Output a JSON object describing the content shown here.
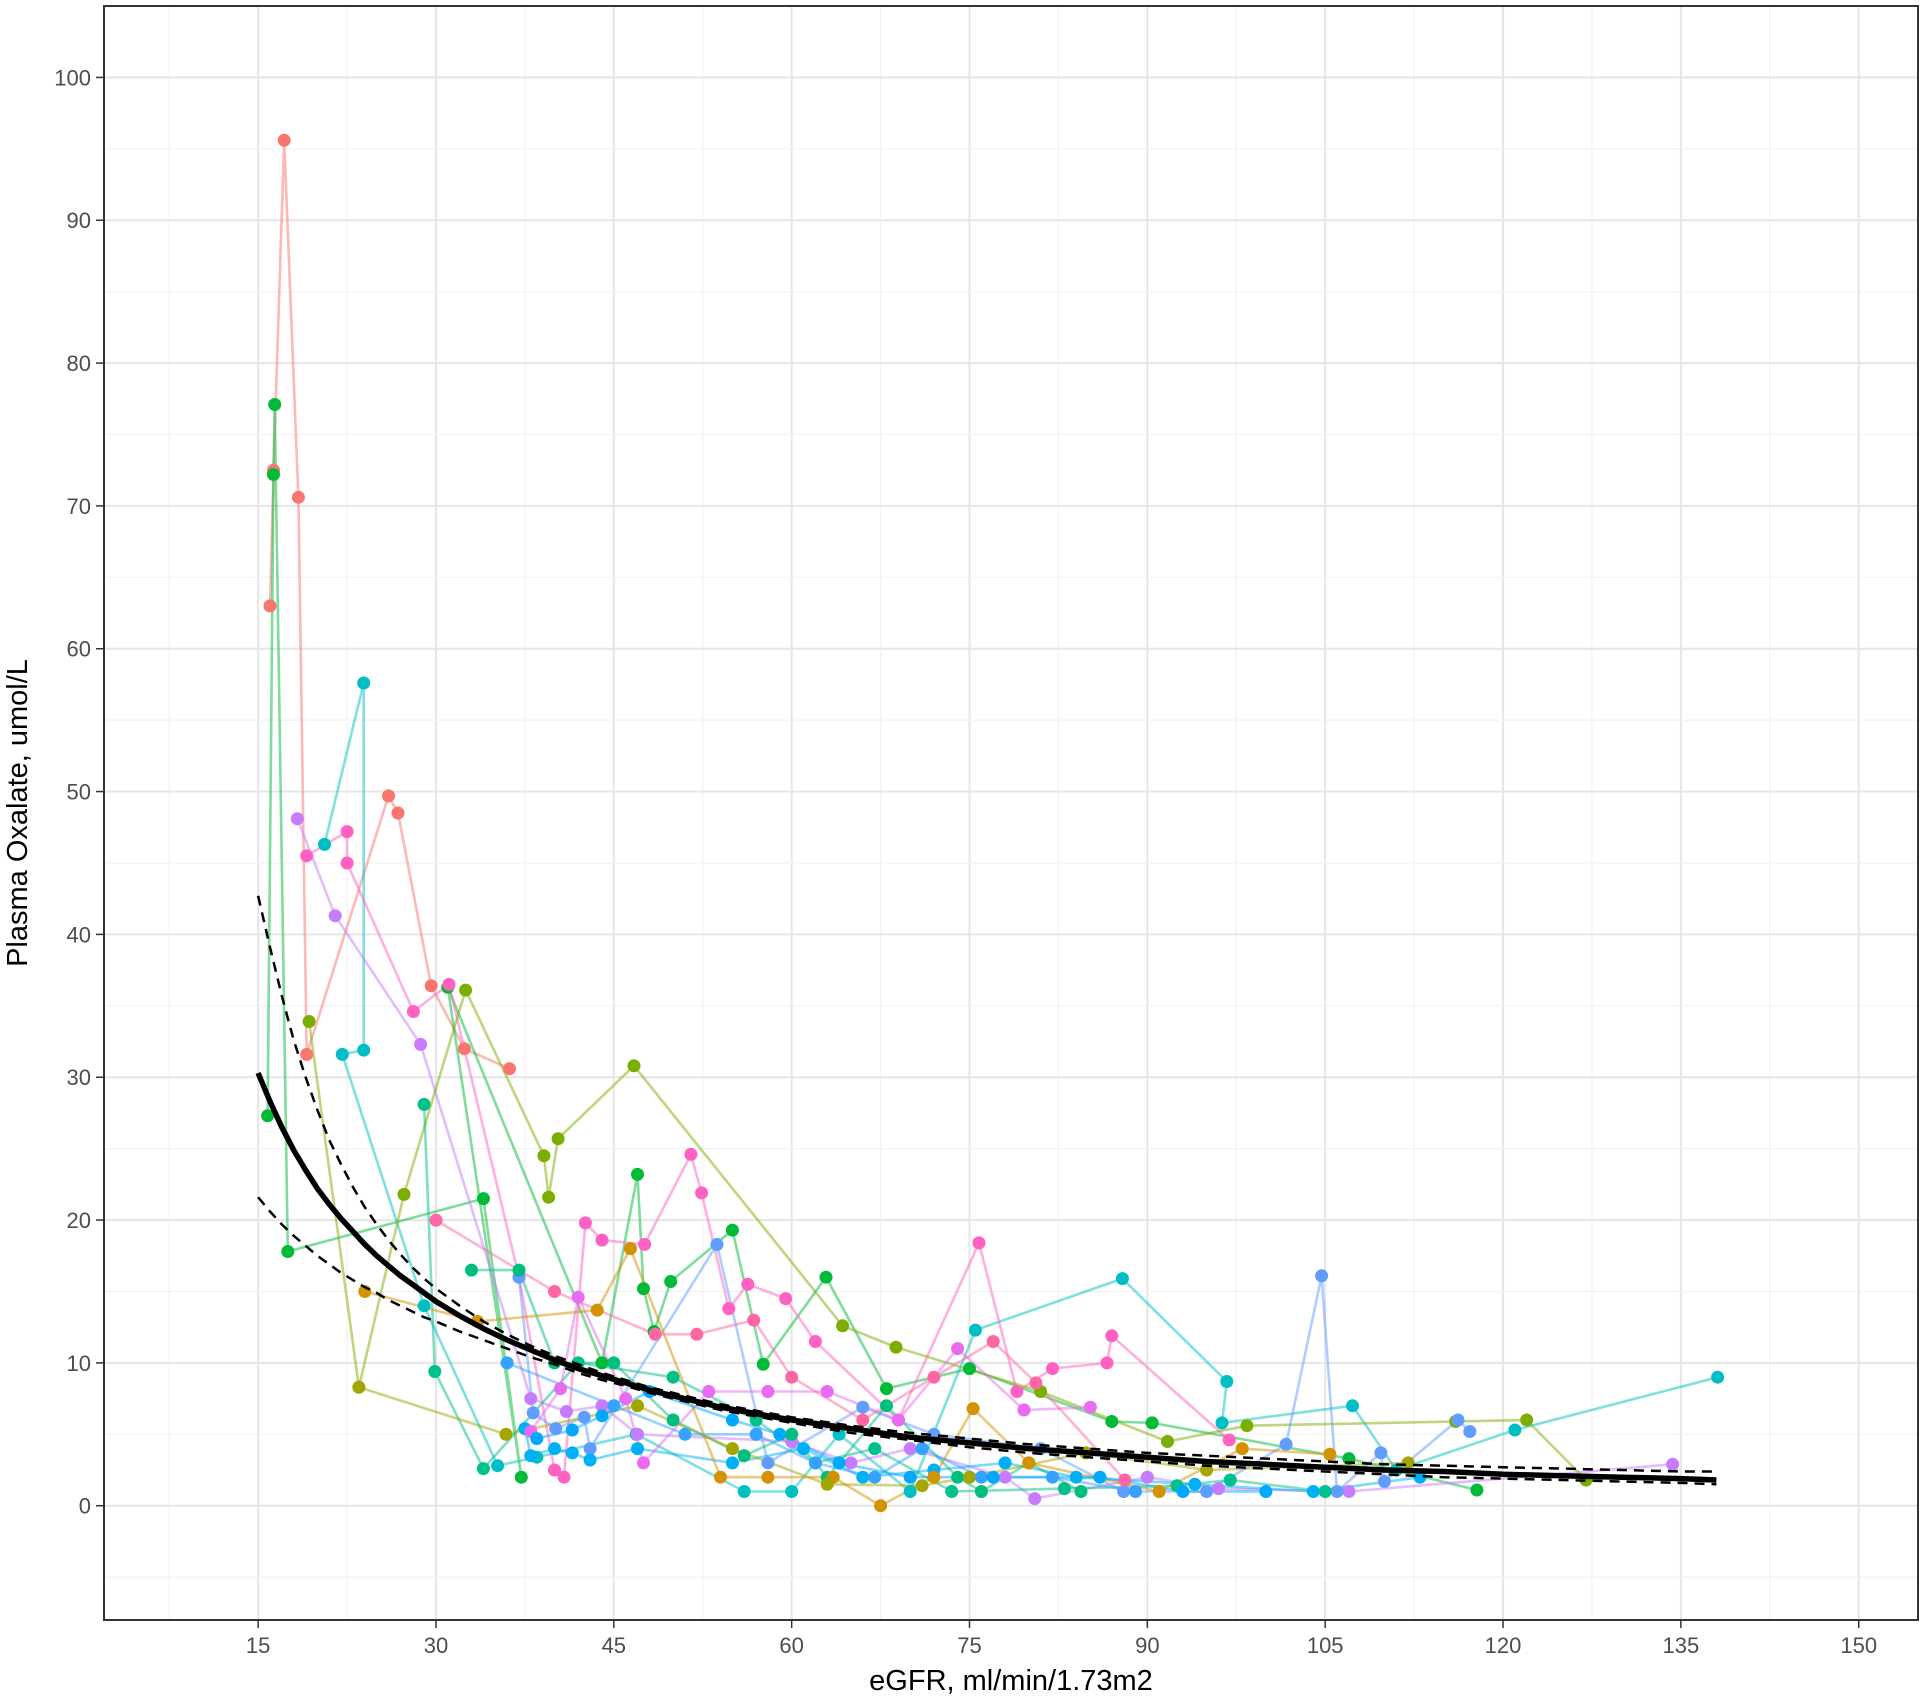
{
  "chart_data": {
    "type": "scatter",
    "title": "",
    "xlabel": "eGFR, ml/min/1.73m2",
    "ylabel": "Plasma Oxalate, umol/L",
    "xlim": [
      2,
      155
    ],
    "ylim": [
      -8,
      105
    ],
    "x_ticks": [
      15,
      30,
      45,
      60,
      75,
      90,
      105,
      120,
      135,
      150
    ],
    "y_ticks": [
      0,
      10,
      20,
      30,
      40,
      50,
      60,
      70,
      80,
      90,
      100
    ],
    "grid": true,
    "legend": "none",
    "series": [
      {
        "color": "#F8766D",
        "points": [
          [
            16,
            63
          ],
          [
            16.3,
            72.5
          ],
          [
            17.2,
            95.6
          ],
          [
            18.4,
            70.6
          ],
          [
            19.1,
            31.6
          ],
          [
            26,
            49.7
          ],
          [
            26.8,
            48.5
          ],
          [
            29.6,
            36.4
          ],
          [
            32.4,
            32
          ],
          [
            36.2,
            30.6
          ]
        ]
      },
      {
        "color": "#00BA38",
        "points": [
          [
            15.8,
            27.3
          ],
          [
            16.3,
            72.2
          ],
          [
            16.4,
            77.1
          ],
          [
            17.5,
            17.8
          ],
          [
            34,
            21.5
          ],
          [
            37.2,
            2
          ],
          [
            31,
            36.3
          ],
          [
            44,
            10
          ],
          [
            47,
            23.2
          ],
          [
            47.5,
            15.2
          ],
          [
            48.4,
            12.2
          ],
          [
            49.8,
            15.7
          ],
          [
            55,
            19.3
          ],
          [
            57.6,
            9.9
          ],
          [
            62.9,
            16
          ],
          [
            68,
            8.2
          ],
          [
            75,
            9.6
          ],
          [
            87,
            5.9
          ],
          [
            90.4,
            5.8
          ],
          [
            107,
            3.3
          ],
          [
            117.8,
            1.1
          ]
        ]
      },
      {
        "color": "#00BFC4",
        "points": [
          [
            20.6,
            46.3
          ],
          [
            23.9,
            57.6
          ],
          [
            23.9,
            31.9
          ],
          [
            22.1,
            31.6
          ],
          [
            29,
            14
          ],
          [
            35.2,
            2.8
          ],
          [
            38.5,
            3.4
          ],
          [
            46.9,
            5
          ],
          [
            56,
            1
          ],
          [
            60,
            1
          ],
          [
            64,
            5
          ],
          [
            70,
            1
          ],
          [
            75.5,
            12.3
          ],
          [
            87.9,
            15.9
          ],
          [
            96.7,
            8.7
          ],
          [
            96.3,
            5.8
          ],
          [
            107.3,
            7
          ],
          [
            111,
            2.5
          ],
          [
            121,
            5.3
          ],
          [
            138.1,
            9
          ]
        ]
      },
      {
        "color": "#C77CFF",
        "points": [
          [
            18.3,
            48.1
          ],
          [
            21.5,
            41.3
          ],
          [
            28.7,
            32.3
          ],
          [
            38,
            7.5
          ],
          [
            41,
            6.6
          ],
          [
            44,
            7
          ],
          [
            47,
            5
          ],
          [
            60,
            4.5
          ],
          [
            65,
            3
          ],
          [
            70,
            4
          ],
          [
            78,
            2
          ],
          [
            80.5,
            0.5
          ],
          [
            90,
            2
          ],
          [
            96,
            1.2
          ],
          [
            107,
            1
          ],
          [
            134.3,
            2.9
          ]
        ]
      },
      {
        "color": "#FF61C3",
        "points": [
          [
            19.1,
            45.5
          ],
          [
            22.5,
            47.2
          ],
          [
            22.5,
            45
          ],
          [
            28.1,
            34.6
          ],
          [
            31.1,
            36.5
          ],
          [
            37,
            16
          ],
          [
            40,
            2.5
          ],
          [
            40.8,
            2
          ],
          [
            42.6,
            19.8
          ],
          [
            44,
            18.6
          ],
          [
            47.6,
            18.3
          ],
          [
            51.5,
            24.6
          ],
          [
            52.4,
            21.9
          ],
          [
            54.7,
            13.8
          ],
          [
            56.3,
            15.5
          ],
          [
            59.5,
            14.5
          ],
          [
            62,
            11.5
          ],
          [
            69,
            6
          ],
          [
            75.8,
            18.4
          ],
          [
            79,
            8
          ],
          [
            82,
            9.6
          ],
          [
            86.6,
            10
          ],
          [
            87,
            11.9
          ],
          [
            96.9,
            4.6
          ]
        ]
      },
      {
        "color": "#7CAE00",
        "points": [
          [
            19.3,
            33.9
          ],
          [
            23.5,
            8.3
          ],
          [
            27.3,
            21.8
          ],
          [
            32.5,
            36.1
          ],
          [
            39.1,
            24.5
          ],
          [
            39.5,
            21.6
          ],
          [
            40.3,
            25.7
          ],
          [
            46.7,
            30.8
          ],
          [
            64.3,
            12.6
          ],
          [
            68.8,
            11.1
          ],
          [
            81,
            8
          ],
          [
            91.7,
            4.5
          ],
          [
            98.4,
            5.6
          ],
          [
            116,
            5.9
          ],
          [
            122,
            6
          ],
          [
            127,
            1.8
          ]
        ]
      },
      {
        "color": "#619CFF",
        "points": [
          [
            37,
            16
          ],
          [
            38.2,
            6.5
          ],
          [
            40.1,
            5.4
          ],
          [
            42.5,
            6.2
          ],
          [
            43,
            4
          ],
          [
            53.7,
            18.3
          ],
          [
            58,
            3
          ],
          [
            66,
            6.9
          ],
          [
            72,
            5
          ],
          [
            81,
            4
          ],
          [
            88,
            1
          ],
          [
            95,
            1
          ],
          [
            101.7,
            4.3
          ],
          [
            104.7,
            16.1
          ],
          [
            106,
            1
          ],
          [
            109.7,
            3.7
          ],
          [
            110,
            1.7
          ],
          [
            116.2,
            6
          ],
          [
            117.2,
            5.2
          ]
        ]
      },
      {
        "color": "#00B0F6",
        "points": [
          [
            37.5,
            5.4
          ],
          [
            38,
            3.5
          ],
          [
            40,
            4
          ],
          [
            41.5,
            3.7
          ],
          [
            43,
            3.2
          ],
          [
            47,
            4
          ],
          [
            55,
            3
          ],
          [
            61,
            4
          ],
          [
            66,
            2
          ],
          [
            72,
            2.5
          ],
          [
            78,
            3
          ],
          [
            84,
            2
          ],
          [
            94,
            1.5
          ],
          [
            104,
            1
          ],
          [
            113,
            2
          ]
        ]
      },
      {
        "color": "#00C08B",
        "points": [
          [
            29,
            28.1
          ],
          [
            29.9,
            9.4
          ],
          [
            34,
            2.6
          ],
          [
            42,
            10
          ],
          [
            50,
            9
          ],
          [
            57,
            6
          ],
          [
            62,
            3
          ],
          [
            67,
            4
          ],
          [
            73.5,
            1
          ],
          [
            83,
            1.2
          ],
          [
            92.5,
            1.4
          ],
          [
            97,
            1.8
          ],
          [
            105,
            1
          ]
        ]
      },
      {
        "color": "#E76BF3",
        "points": [
          [
            38,
            5.2
          ],
          [
            40.5,
            8.2
          ],
          [
            42,
            14.6
          ],
          [
            46,
            7.5
          ],
          [
            47.5,
            3
          ],
          [
            53,
            8
          ],
          [
            58,
            8
          ],
          [
            63,
            8
          ],
          [
            69,
            6
          ],
          [
            74,
            11
          ],
          [
            79.6,
            6.7
          ],
          [
            85.2,
            6.9
          ]
        ]
      },
      {
        "color": "#00BF7D",
        "points": [
          [
            33,
            16.5
          ],
          [
            37,
            16.5
          ],
          [
            40,
            10
          ],
          [
            45,
            10
          ],
          [
            50,
            6
          ],
          [
            56,
            3.5
          ],
          [
            60,
            5
          ],
          [
            63,
            2
          ],
          [
            68,
            7
          ],
          [
            74,
            2
          ],
          [
            76,
            1
          ],
          [
            80,
            3
          ],
          [
            84.4,
            1
          ]
        ]
      },
      {
        "color": "#D39200",
        "points": [
          [
            24,
            15
          ],
          [
            33.5,
            12.9
          ],
          [
            43.6,
            13.7
          ],
          [
            46.4,
            18
          ],
          [
            54,
            2
          ],
          [
            58,
            2
          ],
          [
            63.5,
            2
          ],
          [
            67.5,
            0
          ],
          [
            72,
            2
          ],
          [
            75.3,
            6.8
          ],
          [
            80,
            3
          ],
          [
            91,
            1
          ],
          [
            98,
            4
          ],
          [
            105.4,
            3.6
          ]
        ]
      },
      {
        "color": "#A3A500",
        "points": [
          [
            23.5,
            8.3
          ],
          [
            35.9,
            5
          ],
          [
            47,
            7
          ],
          [
            55,
            4
          ],
          [
            63,
            1.5
          ],
          [
            71,
            1.4
          ],
          [
            75,
            2
          ],
          [
            84.8,
            3.7
          ],
          [
            95,
            2.5
          ],
          [
            112,
            3
          ]
        ]
      },
      {
        "color": "#FF67A4",
        "points": [
          [
            30,
            20
          ],
          [
            40,
            15
          ],
          [
            48.5,
            12
          ],
          [
            52,
            12
          ],
          [
            56.8,
            13
          ],
          [
            60,
            9
          ],
          [
            66,
            6
          ],
          [
            72,
            9
          ],
          [
            77,
            11.5
          ],
          [
            80.6,
            8.6
          ],
          [
            88.1,
            1.8
          ]
        ]
      },
      {
        "color": "#35A2FF",
        "points": [
          [
            36,
            10
          ],
          [
            45,
            7
          ],
          [
            51,
            5
          ],
          [
            57,
            5
          ],
          [
            62,
            3
          ],
          [
            67,
            2
          ],
          [
            71,
            4
          ],
          [
            76,
            2
          ],
          [
            82,
            2
          ],
          [
            89,
            1
          ]
        ]
      },
      {
        "color": "#00A9FF",
        "points": [
          [
            38.5,
            4.7
          ],
          [
            41.5,
            5.3
          ],
          [
            44,
            6.3
          ],
          [
            48,
            8
          ],
          [
            55,
            6
          ],
          [
            59,
            5
          ],
          [
            64,
            3
          ],
          [
            70,
            2
          ],
          [
            77,
            2
          ],
          [
            86,
            2
          ],
          [
            93,
            1
          ],
          [
            100,
            1
          ]
        ]
      }
    ],
    "fit": {
      "x": [
        15,
        16,
        17,
        18,
        19,
        20,
        21,
        22,
        23,
        24,
        25,
        26,
        27,
        28,
        29,
        30,
        32,
        34,
        36,
        38,
        40,
        42,
        44,
        46,
        48,
        50,
        52,
        54,
        56,
        58,
        60,
        65,
        70,
        75,
        80,
        85,
        90,
        95,
        100,
        105,
        110,
        115,
        120,
        125,
        130,
        135,
        138
      ],
      "y": [
        30.3,
        28.3,
        26.5,
        24.9,
        23.5,
        22.2,
        21.1,
        20.1,
        19.2,
        18.3,
        17.5,
        16.8,
        16.1,
        15.5,
        14.9,
        14.3,
        13.3,
        12.4,
        11.6,
        10.9,
        10.2,
        9.6,
        9.1,
        8.6,
        8.1,
        7.7,
        7.3,
        6.9,
        6.6,
        6.3,
        6,
        5.4,
        4.8,
        4.4,
        4,
        3.7,
        3.4,
        3.1,
        2.9,
        2.7,
        2.5,
        2.4,
        2.2,
        2.1,
        2,
        1.9,
        1.8
      ],
      "ci_upper": [
        42.7,
        39.1,
        35.7,
        32.6,
        30,
        27.7,
        25.6,
        23.9,
        22.3,
        20.9,
        19.7,
        18.6,
        17.6,
        16.7,
        15.9,
        15.2,
        14,
        12.9,
        12,
        11.2,
        10.5,
        9.9,
        9.3,
        8.8,
        8.3,
        7.9,
        7.5,
        7.1,
        6.8,
        6.5,
        6.2,
        5.6,
        5.1,
        4.7,
        4.3,
        4,
        3.7,
        3.5,
        3.3,
        3.1,
        2.9,
        2.8,
        2.7,
        2.6,
        2.5,
        2.4,
        2.4
      ],
      "ci_lower": [
        21.6,
        20.6,
        19.7,
        18.9,
        18.2,
        17.5,
        16.9,
        16.3,
        15.8,
        15.3,
        14.9,
        14.4,
        14,
        13.6,
        13.2,
        12.9,
        12.2,
        11.6,
        11,
        10.4,
        9.9,
        9.3,
        8.8,
        8.4,
        7.9,
        7.5,
        7.1,
        6.7,
        6.4,
        6.1,
        5.8,
        5.1,
        4.6,
        4.1,
        3.7,
        3.4,
        3.1,
        2.8,
        2.6,
        2.4,
        2.2,
        2,
        1.9,
        1.8,
        1.7,
        1.6,
        1.5
      ]
    }
  }
}
